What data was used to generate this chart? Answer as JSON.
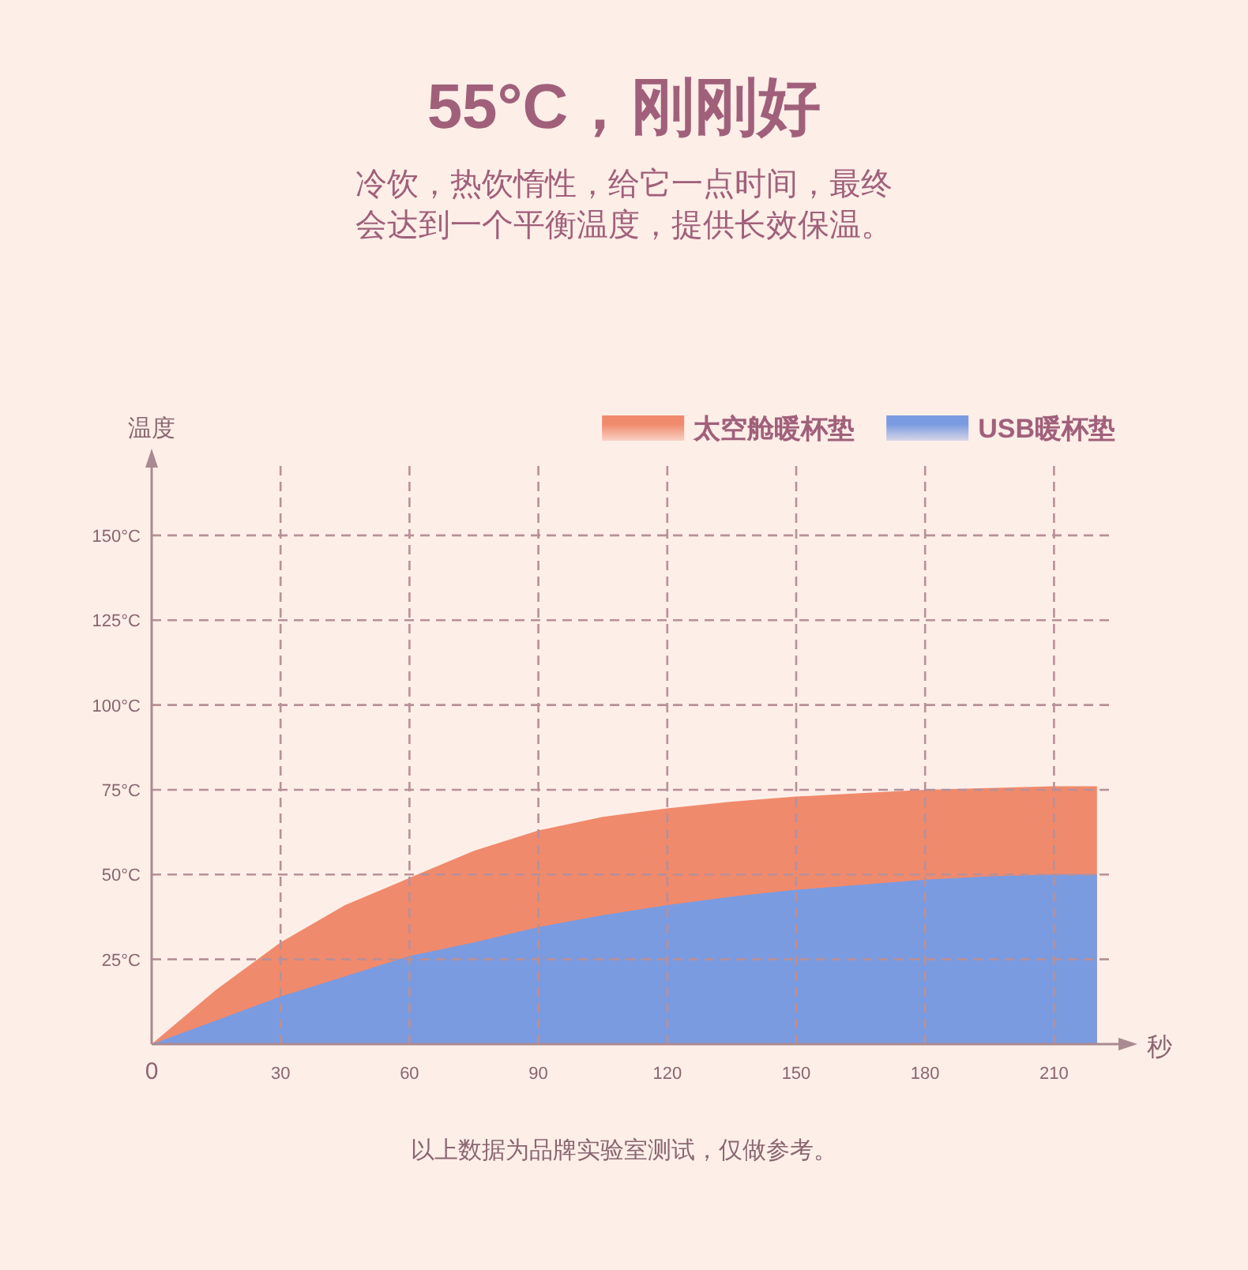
{
  "chart_data": {
    "type": "area",
    "title": "55°C，刚刚好",
    "subtitle": "冷饮，热饮惰性，给它一点时间，最终会达到一个平衡温度，提供长效保温。",
    "xlabel": "秒",
    "ylabel": "温度",
    "x": [
      0,
      15,
      30,
      45,
      60,
      75,
      90,
      105,
      120,
      135,
      150,
      165,
      180,
      195,
      210,
      220
    ],
    "series": [
      {
        "name": "太空舱暖杯垫",
        "color": "#f08a6c",
        "values": [
          0,
          16,
          30,
          41,
          49,
          57,
          63,
          67,
          69.5,
          71.5,
          73,
          74,
          75,
          75.5,
          76,
          76
        ]
      },
      {
        "name": "USB暖杯垫",
        "color": "#7b9be0",
        "values": [
          0,
          7,
          14,
          20,
          26,
          30,
          34.5,
          38,
          41,
          43.5,
          45.5,
          47,
          48.5,
          49.5,
          50,
          50
        ]
      }
    ],
    "xlim": [
      0,
      225
    ],
    "ylim": [
      0,
      170
    ],
    "xticks": [
      0,
      30,
      60,
      90,
      120,
      150,
      180,
      210
    ],
    "yticks": [
      {
        "value": 25,
        "label": "25°C"
      },
      {
        "value": 50,
        "label": "50°C"
      },
      {
        "value": 75,
        "label": "75°C"
      },
      {
        "value": 100,
        "label": "100°C"
      },
      {
        "value": 125,
        "label": "125°C"
      },
      {
        "value": 150,
        "label": "150°C"
      }
    ],
    "grid": true,
    "legend": "top right",
    "annotations": [
      "以上数据为品牌实验室测试，仅做参考。"
    ]
  }
}
